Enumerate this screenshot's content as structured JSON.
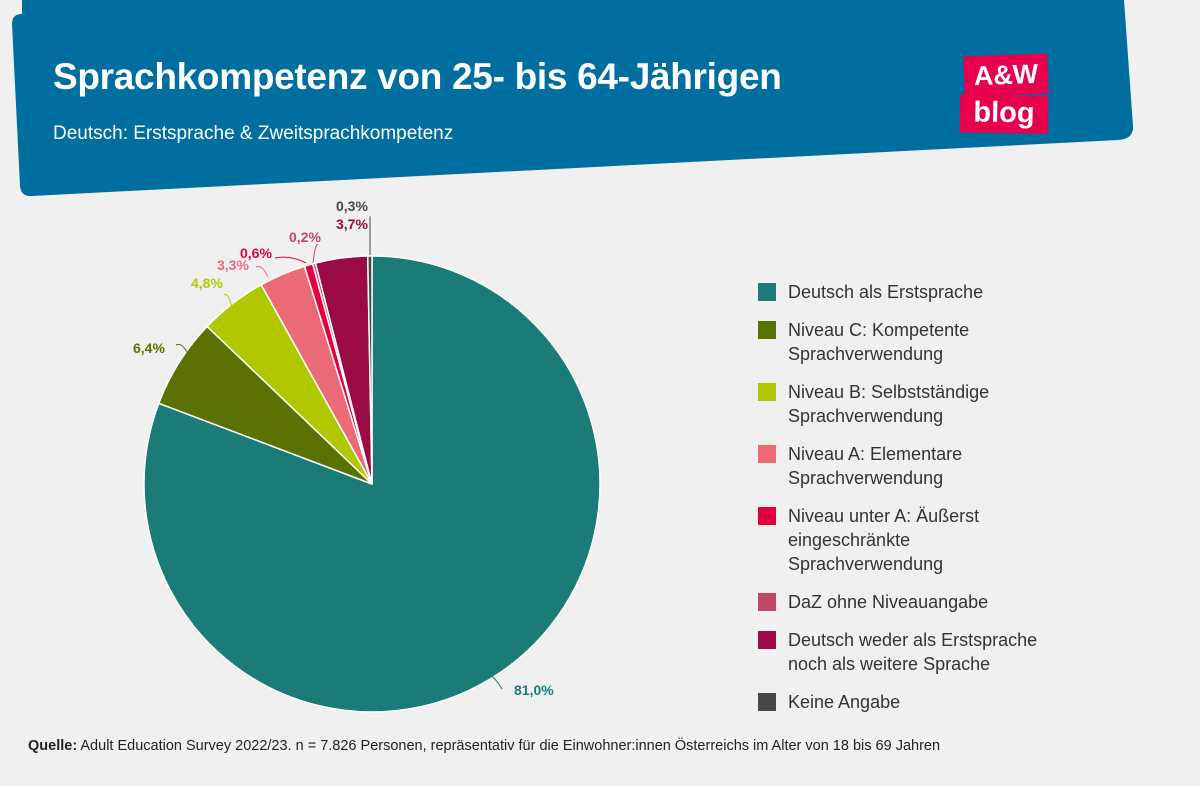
{
  "header": {
    "title": "Sprachkompetenz von 25- bis 64-Jährigen",
    "subtitle": "Deutsch: Erstsprache & Zweitsprachkompetenz",
    "logo_top": "A&W",
    "logo_bottom": "blog",
    "band_color": "#006f9f",
    "logo_color": "#e8004f"
  },
  "chart_data": {
    "type": "pie",
    "title": "Sprachkompetenz von 25- bis 64-Jährigen",
    "subtitle": "Deutsch: Erstsprache & Zweitsprachkompetenz",
    "slices": [
      {
        "label": "Deutsch als Erstsprache",
        "value": 81.0,
        "display": "81,0%",
        "color": "#1b7b77"
      },
      {
        "label": "Niveau C: Kompetente\nSprachverwendung",
        "value": 6.4,
        "display": "6,4%",
        "color": "#5a7202"
      },
      {
        "label": "Niveau B: Selbstständige\nSprachverwendung",
        "value": 4.8,
        "display": "4,8%",
        "color": "#b0c800"
      },
      {
        "label": "Niveau A: Elementare\nSprachverwendung",
        "value": 3.3,
        "display": "3,3%",
        "color": "#ec6a78"
      },
      {
        "label": "Niveau unter A: Äußerst\neingeschränkte\nSprachverwendung",
        "value": 0.6,
        "display": "0,6%",
        "color": "#e3003f"
      },
      {
        "label": "DaZ ohne Niveauangabe",
        "value": 0.2,
        "display": "0,2%",
        "color": "#c0496a"
      },
      {
        "label": "Deutsch weder als Erstsprache\nnoch als weitere Sprache",
        "value": 3.7,
        "display": "3,7%",
        "color": "#9b0a45"
      },
      {
        "label": "Keine Angabe",
        "value": 0.3,
        "display": "0,3%",
        "color": "#474747"
      }
    ],
    "start_angle_deg": 0,
    "direction": "clockwise",
    "legend_position": "right"
  },
  "source": {
    "label": "Quelle:",
    "text": "Adult Education Survey 2022/23. n = 7.826 Personen, repräsentativ für die Einwohner:innen Österreichs im Alter von 18 bis 69 Jahren"
  }
}
